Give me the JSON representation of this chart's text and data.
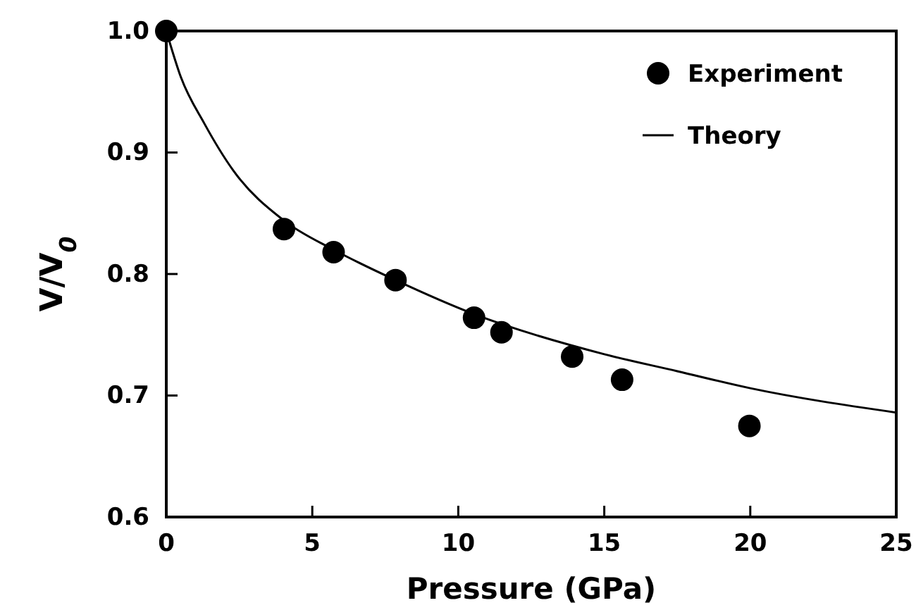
{
  "chart_data": {
    "type": "scatter",
    "xlabel": "Pressure (GPa)",
    "ylabel": "V/V$_{0}$",
    "xlim": [
      0,
      25
    ],
    "ylim": [
      0.6,
      1.0
    ],
    "xticks": [
      0,
      5,
      10,
      15,
      20,
      25
    ],
    "yticks": [
      0.6,
      0.7,
      0.8,
      0.9,
      {
        "value": 1.0,
        "label": "1.0"
      }
    ],
    "grid": false,
    "legend": "top right",
    "series": [
      {
        "name": "Experiment",
        "marker": "circle",
        "color": "#000000",
        "x": [
          0,
          4.03,
          5.73,
          7.85,
          10.54,
          11.48,
          13.9,
          15.61,
          19.97
        ],
        "values": [
          1.0,
          0.837,
          0.818,
          0.795,
          0.764,
          0.752,
          0.732,
          0.713,
          0.675
        ]
      },
      {
        "name": "Theory",
        "type": "line",
        "marker": "none",
        "line_style": "solid",
        "color": "#000000",
        "x": [
          0,
          0.5,
          1.3,
          2.3,
          4.03,
          5.73,
          7.85,
          10.54,
          15,
          17.5,
          20,
          25
        ],
        "values": [
          1.0,
          0.962,
          0.924,
          0.885,
          0.844,
          0.82,
          0.795,
          0.767,
          0.734,
          0.72,
          0.706,
          0.686
        ]
      }
    ]
  }
}
